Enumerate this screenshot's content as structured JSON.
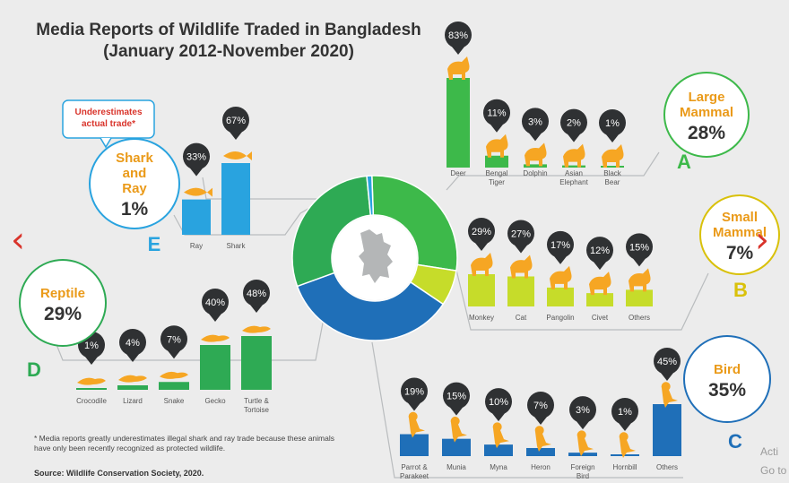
{
  "title_line1": "Media Reports of Wildlife Traded in Bangladesh",
  "title_line2": "(January 2012-November 2020)",
  "callout_shark": "Underestimates actual trade*",
  "footnote": "* Media reports greatly underestimates illegal shark and ray trade because these animals have only been recently recognized as protected wildlife.",
  "source": "Source: Wildlife Conservation Society, 2020.",
  "watermark": [
    "Acti",
    "Go to"
  ],
  "chart_data": {
    "type": "pie",
    "donut": {
      "categories": [
        "Large Mammal",
        "Small Mammal",
        "Bird",
        "Reptile",
        "Shark and Ray"
      ],
      "values": [
        28,
        7,
        35,
        29,
        1
      ],
      "colors": [
        "#3db94a",
        "#c6dc2a",
        "#1f6fb8",
        "#2eaa54",
        "#29a3df"
      ]
    },
    "groups": [
      {
        "letter": "A",
        "name": "Large Mammal",
        "pct": "28%",
        "color": "#3db94a",
        "bars": [
          {
            "label": "Deer",
            "value": 83
          },
          {
            "label": "Bengal Tiger",
            "value": 11
          },
          {
            "label": "Dolphin",
            "value": 3
          },
          {
            "label": "Asian Elephant",
            "value": 2
          },
          {
            "label": "Black Bear",
            "value": 1
          }
        ]
      },
      {
        "letter": "B",
        "name": "Small Mammal",
        "pct": "7%",
        "color": "#c6dc2a",
        "bars": [
          {
            "label": "Monkey",
            "value": 29
          },
          {
            "label": "Cat",
            "value": 27
          },
          {
            "label": "Pangolin",
            "value": 17
          },
          {
            "label": "Civet",
            "value": 12
          },
          {
            "label": "Others",
            "value": 15
          }
        ]
      },
      {
        "letter": "C",
        "name": "Bird",
        "pct": "35%",
        "color": "#1f6fb8",
        "bars": [
          {
            "label": "Parrot & Parakeet",
            "value": 19
          },
          {
            "label": "Munia",
            "value": 15
          },
          {
            "label": "Myna",
            "value": 10
          },
          {
            "label": "Heron",
            "value": 7
          },
          {
            "label": "Foreign Bird",
            "value": 3
          },
          {
            "label": "Hornbill",
            "value": 1
          },
          {
            "label": "Others",
            "value": 45
          }
        ]
      },
      {
        "letter": "D",
        "name": "Reptile",
        "pct": "29%",
        "color": "#2eaa54",
        "bars": [
          {
            "label": "Crocodile",
            "value": 1
          },
          {
            "label": "Lizard",
            "value": 4
          },
          {
            "label": "Snake",
            "value": 7
          },
          {
            "label": "Gecko",
            "value": 40
          },
          {
            "label": "Turtle & Tortoise",
            "value": 48
          }
        ]
      },
      {
        "letter": "E",
        "name": "Shark and Ray",
        "pct": "1%",
        "color": "#29a3df",
        "bars": [
          {
            "label": "Ray",
            "value": 33
          },
          {
            "label": "Shark",
            "value": 67
          }
        ]
      }
    ]
  }
}
